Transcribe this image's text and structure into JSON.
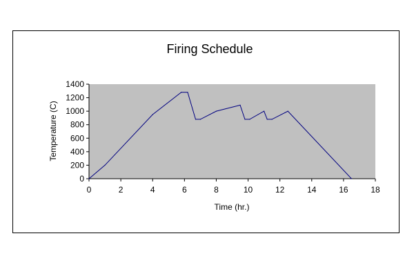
{
  "chart_data": {
    "type": "line",
    "title": "Firing Schedule",
    "xlabel": "Time (hr.)",
    "ylabel": "Temperature (C)",
    "xlim": [
      0,
      18
    ],
    "ylim": [
      0,
      1400
    ],
    "x_ticks": [
      "0",
      "2",
      "4",
      "6",
      "8",
      "10",
      "12",
      "14",
      "16",
      "18"
    ],
    "y_ticks": [
      "0",
      "200",
      "400",
      "600",
      "800",
      "1000",
      "1200",
      "1400"
    ],
    "grid": false,
    "legend": "none",
    "plot_background": "#c0c0c0",
    "series": [
      {
        "color": "#000080",
        "x": [
          0,
          1,
          4,
          5.8,
          6.2,
          6.7,
          7,
          8,
          9.5,
          9.8,
          10.1,
          11,
          11.2,
          11.5,
          12.5,
          16.5
        ],
        "y": [
          0,
          200,
          950,
          1280,
          1280,
          880,
          880,
          1000,
          1090,
          880,
          880,
          1000,
          880,
          880,
          1000,
          0
        ]
      }
    ]
  }
}
